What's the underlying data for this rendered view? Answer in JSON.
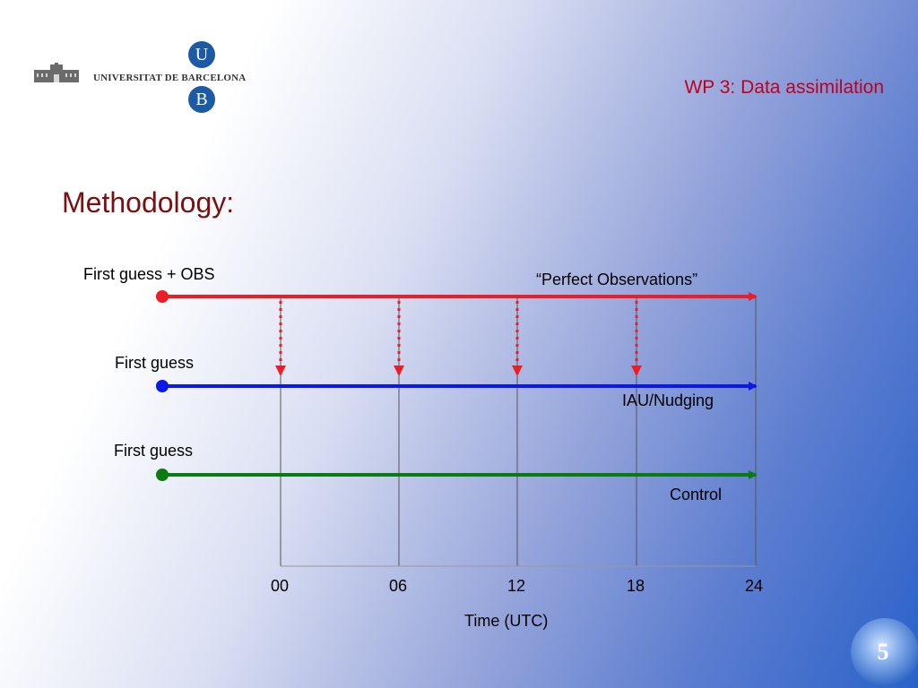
{
  "header": {
    "logo_top_letter": "U",
    "logo_text": "UNIVERSITAT DE BARCELONA",
    "logo_bottom_letter": "B",
    "title": "WP  3: Data assimilation"
  },
  "section": {
    "title": "Methodology:"
  },
  "diagram": {
    "timelines": [
      {
        "label": "First guess + OBS",
        "annotation": "“Perfect Observations”",
        "color": "#ee1c25"
      },
      {
        "label": "First guess",
        "annotation": "IAU/Nudging",
        "color": "#0b18e8"
      },
      {
        "label": "First guess",
        "annotation": "Control",
        "color": "#0a7a12"
      }
    ],
    "time_axis": {
      "title": "Time (UTC)",
      "ticks": [
        "00",
        "06",
        "12",
        "18",
        "24"
      ]
    },
    "observation_times": [
      "00",
      "06",
      "12",
      "18"
    ]
  },
  "page": {
    "number": "5"
  }
}
